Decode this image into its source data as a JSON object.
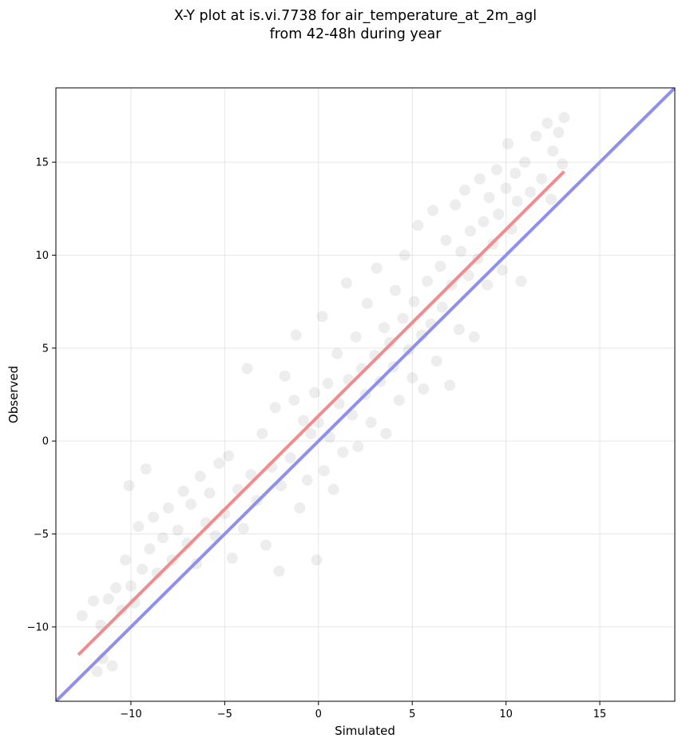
{
  "chart_data": {
    "type": "scatter",
    "title_lines": [
      "X-Y plot at is.vi.7738 for air_temperature_at_2m_agl",
      "from 42-48h during year"
    ],
    "xlabel": "Simulated",
    "ylabel": "Observed",
    "xlim": [
      -14.0,
      19.0
    ],
    "ylim": [
      -14.0,
      19.0
    ],
    "xticks": [
      -10,
      -5,
      0,
      5,
      10,
      15
    ],
    "yticks": [
      -10,
      -5,
      0,
      5,
      10,
      15
    ],
    "xtick_labels": [
      "−10",
      "−5",
      "0",
      "5",
      "10",
      "15"
    ],
    "ytick_labels": [
      "−10",
      "−5",
      "0",
      "5",
      "10",
      "15"
    ],
    "grid": true,
    "series": [
      {
        "kind": "scatter",
        "color": "#000000",
        "opacity": 0.07,
        "points": [
          [
            -12.6,
            -9.4
          ],
          [
            -12.0,
            -8.6
          ],
          [
            -11.6,
            -9.9
          ],
          [
            -11.8,
            -12.4
          ],
          [
            -11.5,
            -11.7
          ],
          [
            -11.0,
            -12.1
          ],
          [
            -11.2,
            -8.5
          ],
          [
            -10.8,
            -7.9
          ],
          [
            -10.5,
            -9.1
          ],
          [
            -10.3,
            -6.4
          ],
          [
            -10.0,
            -7.8
          ],
          [
            -9.8,
            -8.7
          ],
          [
            -10.1,
            -2.4
          ],
          [
            -9.6,
            -4.6
          ],
          [
            -9.2,
            -1.5
          ],
          [
            -9.4,
            -6.9
          ],
          [
            -9.0,
            -5.8
          ],
          [
            -8.6,
            -7.1
          ],
          [
            -8.8,
            -4.1
          ],
          [
            -8.3,
            -5.2
          ],
          [
            -8.0,
            -3.6
          ],
          [
            -7.8,
            -6.4
          ],
          [
            -7.5,
            -4.8
          ],
          [
            -7.2,
            -2.7
          ],
          [
            -7.0,
            -5.5
          ],
          [
            -6.8,
            -3.4
          ],
          [
            -6.5,
            -6.6
          ],
          [
            -6.3,
            -1.9
          ],
          [
            -6.0,
            -4.4
          ],
          [
            -5.8,
            -2.8
          ],
          [
            -5.5,
            -5.1
          ],
          [
            -5.3,
            -1.2
          ],
          [
            -5.0,
            -3.9
          ],
          [
            -4.8,
            -0.8
          ],
          [
            -4.6,
            -6.3
          ],
          [
            -4.3,
            -2.6
          ],
          [
            -4.0,
            -4.7
          ],
          [
            -3.8,
            3.9
          ],
          [
            -3.6,
            -1.8
          ],
          [
            -3.3,
            -3.2
          ],
          [
            -3.0,
            0.4
          ],
          [
            -2.8,
            -5.6
          ],
          [
            -2.5,
            -1.4
          ],
          [
            -2.3,
            1.8
          ],
          [
            -2.1,
            -7.0
          ],
          [
            -2.0,
            -2.4
          ],
          [
            -1.8,
            3.5
          ],
          [
            -1.5,
            -0.9
          ],
          [
            -1.3,
            2.2
          ],
          [
            -1.2,
            5.7
          ],
          [
            -1.0,
            -3.6
          ],
          [
            -0.8,
            1.1
          ],
          [
            -0.6,
            -2.1
          ],
          [
            -0.4,
            0.4
          ],
          [
            -0.2,
            2.6
          ],
          [
            -0.1,
            -6.4
          ],
          [
            0.0,
            1.0
          ],
          [
            0.2,
            6.7
          ],
          [
            0.3,
            -1.6
          ],
          [
            0.5,
            3.1
          ],
          [
            0.6,
            0.2
          ],
          [
            0.8,
            -2.6
          ],
          [
            1.0,
            4.7
          ],
          [
            1.1,
            2.0
          ],
          [
            1.3,
            -0.6
          ],
          [
            1.5,
            8.5
          ],
          [
            1.6,
            3.3
          ],
          [
            1.8,
            1.4
          ],
          [
            2.0,
            5.6
          ],
          [
            2.1,
            -0.3
          ],
          [
            2.3,
            3.9
          ],
          [
            2.5,
            2.5
          ],
          [
            2.6,
            7.4
          ],
          [
            2.8,
            1.0
          ],
          [
            3.0,
            4.6
          ],
          [
            3.1,
            9.3
          ],
          [
            3.3,
            3.2
          ],
          [
            3.5,
            6.1
          ],
          [
            3.6,
            0.4
          ],
          [
            3.8,
            5.3
          ],
          [
            4.0,
            4.0
          ],
          [
            4.1,
            8.1
          ],
          [
            4.3,
            2.2
          ],
          [
            4.5,
            6.6
          ],
          [
            4.6,
            10.0
          ],
          [
            4.8,
            4.9
          ],
          [
            5.0,
            3.4
          ],
          [
            5.1,
            7.5
          ],
          [
            5.3,
            11.6
          ],
          [
            5.5,
            5.7
          ],
          [
            5.6,
            2.8
          ],
          [
            5.8,
            8.6
          ],
          [
            6.0,
            6.3
          ],
          [
            6.1,
            12.4
          ],
          [
            6.3,
            4.3
          ],
          [
            6.5,
            9.4
          ],
          [
            6.6,
            7.2
          ],
          [
            6.8,
            10.8
          ],
          [
            7.0,
            3.0
          ],
          [
            7.1,
            8.4
          ],
          [
            7.3,
            12.7
          ],
          [
            7.5,
            6.0
          ],
          [
            7.6,
            10.2
          ],
          [
            7.8,
            13.5
          ],
          [
            8.0,
            8.9
          ],
          [
            8.1,
            11.3
          ],
          [
            8.3,
            5.6
          ],
          [
            8.5,
            9.8
          ],
          [
            8.6,
            14.1
          ],
          [
            8.8,
            11.8
          ],
          [
            9.0,
            8.4
          ],
          [
            9.1,
            13.1
          ],
          [
            9.3,
            10.6
          ],
          [
            9.5,
            14.6
          ],
          [
            9.6,
            12.2
          ],
          [
            9.8,
            9.2
          ],
          [
            10.0,
            13.6
          ],
          [
            10.1,
            16.0
          ],
          [
            10.3,
            11.4
          ],
          [
            10.5,
            14.4
          ],
          [
            10.6,
            12.9
          ],
          [
            10.8,
            8.6
          ],
          [
            11.0,
            15.0
          ],
          [
            11.3,
            13.4
          ],
          [
            11.6,
            16.4
          ],
          [
            11.9,
            14.1
          ],
          [
            12.2,
            17.1
          ],
          [
            12.5,
            15.6
          ],
          [
            12.8,
            16.6
          ],
          [
            13.1,
            17.4
          ],
          [
            13.0,
            14.9
          ],
          [
            12.4,
            13.0
          ]
        ]
      },
      {
        "kind": "line",
        "name": "",
        "color": "#f28c8c",
        "x": [
          -12.8,
          13.1
        ],
        "y": [
          -11.5,
          14.5
        ]
      },
      {
        "kind": "line",
        "name": "",
        "color": "#8f8ff0",
        "x": [
          -14.0,
          19.0
        ],
        "y": [
          -14.0,
          19.0
        ]
      }
    ]
  }
}
